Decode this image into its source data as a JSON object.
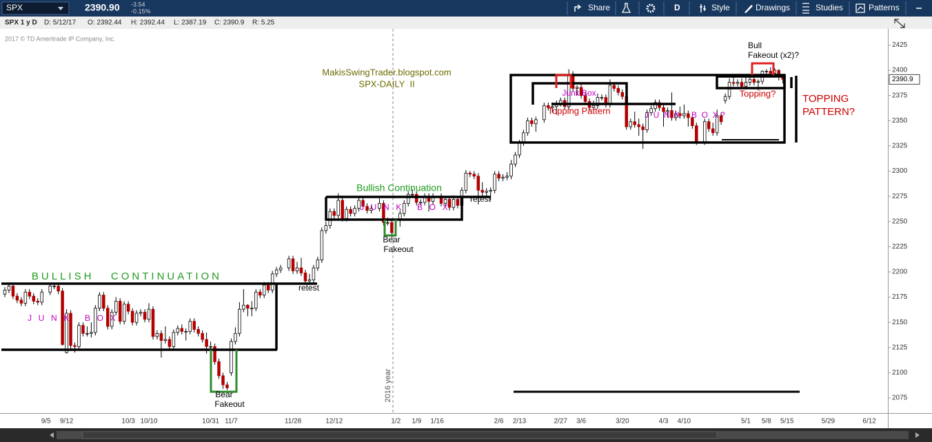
{
  "toolbar": {
    "symbol": "SPX",
    "last": "2390.90",
    "change": "-3.54",
    "change_pct": "-0.15%",
    "buttons": [
      "Share",
      "D",
      "Style",
      "Drawings",
      "Studies",
      "Patterns"
    ]
  },
  "info_bar": {
    "title": "SPX 1 y D",
    "fields": [
      "D: 5/12/17",
      "O: 2392.44",
      "H: 2392.44",
      "L: 2387.19",
      "C: 2390.9",
      "R: 5.25"
    ]
  },
  "copyright": "2017 © TD Ameritrade IP Company, Inc.",
  "chart_data": {
    "type": "candlestick",
    "categories": [
      null,
      null,
      null,
      null,
      null,
      null,
      null,
      null,
      null,
      null,
      "9/5",
      null,
      null,
      null,
      null,
      "9/12",
      null,
      null,
      null,
      null,
      null,
      null,
      null,
      null,
      null,
      null,
      null,
      null,
      null,
      null,
      "10/3",
      null,
      null,
      null,
      null,
      "10/10",
      null,
      null,
      null,
      null,
      null,
      null,
      null,
      null,
      null,
      null,
      null,
      null,
      null,
      null,
      "10/31",
      null,
      null,
      null,
      null,
      "11/7",
      null,
      null,
      null,
      null,
      null,
      null,
      null,
      null,
      null,
      null,
      null,
      null,
      null,
      null,
      "11/28",
      null,
      null,
      null,
      null,
      null,
      null,
      null,
      null,
      null,
      "12/12",
      null,
      null,
      null,
      null,
      null,
      null,
      null,
      null,
      null,
      null,
      null,
      null,
      null,
      null,
      "1/2",
      null,
      null,
      null,
      null,
      "1/9",
      null,
      null,
      null,
      null,
      "1/16",
      null,
      null,
      null,
      null,
      null,
      null,
      null,
      null,
      null,
      null,
      null,
      null,
      null,
      null,
      "2/6",
      null,
      null,
      null,
      null,
      "2/13",
      null,
      null,
      null,
      null,
      null,
      null,
      null,
      null,
      null,
      "2/27",
      null,
      null,
      null,
      null,
      "3/6",
      null,
      null,
      null,
      null,
      null,
      null,
      null,
      null,
      null,
      "3/20",
      null,
      null,
      null,
      null,
      null,
      null,
      null,
      null,
      null,
      "4/3",
      null,
      null,
      null,
      null,
      "4/10",
      null,
      null,
      null,
      null,
      null,
      null,
      null,
      null,
      null,
      null,
      null,
      null,
      null,
      null,
      "5/1",
      null,
      null,
      null,
      null,
      "5/8",
      null,
      null,
      null,
      null,
      "5/15",
      null,
      null,
      null,
      null,
      null,
      null,
      null,
      null,
      null,
      "5/29",
      null,
      null,
      null,
      null,
      null,
      null,
      null,
      null,
      null,
      "6/12",
      null,
      null,
      null,
      null
    ],
    "open": [
      2178,
      2182,
      2186,
      2176,
      2172,
      2169,
      2180,
      2176,
      2171,
      2170,
      null,
      2180,
      2186,
      2186,
      2181,
      2120,
      2159,
      2127,
      2126,
      2147,
      2139,
      2139,
      2140,
      2164,
      2177,
      2164,
      2146,
      2160,
      2171,
      2151,
      2168,
      2161,
      2150,
      2159,
      2160,
      2153,
      2163,
      2136,
      2139,
      2132,
      2133,
      2126,
      2140,
      2144,
      2141,
      2141,
      2151,
      2143,
      2139,
      2133,
      2126,
      2126,
      2111,
      2097,
      2088,
      2100,
      2131,
      2139,
      2163,
      2167,
      2164,
      2164,
      2180,
      2177,
      2187,
      2182,
      2198,
      2202,
      null,
      2204,
      2213,
      2201,
      2204,
      2199,
      2191,
      2192,
      2204,
      2212,
      2241,
      2246,
      2260,
      2256,
      2271,
      2253,
      2262,
      2258,
      2263,
      2271,
      2265,
      2261,
      null,
      2263,
      2268,
      2249,
      2249,
      null,
      2252,
      2258,
      2268,
      2277,
      2277,
      2269,
      2269,
      2275,
      2270,
      null,
      2275,
      2268,
      2272,
      2264,
      2272,
      2266,
      2281,
      2298,
      2297,
      2295,
      2281,
      2279,
      2280,
      2281,
      2297,
      2293,
      2294,
      2295,
      2307,
      2316,
      2328,
      2338,
      2350,
      2347,
      null,
      2351,
      2365,
      2363,
      2364,
      2367,
      2370,
      2364,
      2396,
      2382,
      2383,
      2375,
      2369,
      2363,
      2365,
      2373,
      2373,
      2366,
      2385,
      2382,
      2378,
      2374,
      2344,
      2349,
      2346,
      2344,
      2341,
      2358,
      2362,
      2368,
      2363,
      2359,
      2360,
      2353,
      2357,
      2355,
      2357,
      2353,
      2345,
      null,
      2329,
      2349,
      2342,
      2338,
      2355,
      2370,
      2374,
      2388,
      2387,
      2388,
      2384,
      2388,
      2391,
      2388,
      2389,
      2399,
      2399,
      2397,
      2400,
      2394,
      null,
      null,
      null,
      null,
      null,
      null,
      null,
      null,
      null,
      null,
      null,
      null,
      null,
      null,
      null,
      null,
      null,
      null,
      null,
      null,
      null,
      null,
      null,
      null,
      null
    ],
    "high": [
      2185,
      2189,
      2189,
      2179,
      2175,
      2183,
      2183,
      2179,
      2174,
      2183,
      null,
      2189,
      2189,
      2189,
      2184,
      2163,
      2162,
      2130,
      2150,
      2150,
      2146,
      2150,
      2167,
      2180,
      2180,
      2167,
      2163,
      2175,
      2174,
      2171,
      2171,
      2164,
      2162,
      2163,
      2163,
      2169,
      2166,
      2142,
      2142,
      2146,
      2136,
      2143,
      2147,
      2148,
      2144,
      2154,
      2154,
      2146,
      2142,
      2140,
      2131,
      2129,
      2114,
      2100,
      2091,
      2134,
      2145,
      2170,
      2183,
      2168,
      2171,
      2183,
      2183,
      2190,
      2190,
      2201,
      2205,
      2207,
      null,
      2216,
      2216,
      2210,
      2214,
      2202,
      2198,
      2207,
      2215,
      2244,
      2250,
      2263,
      2263,
      2278,
      2274,
      2265,
      2265,
      2266,
      2274,
      2274,
      2268,
      2266,
      null,
      2273,
      2271,
      2254,
      2252,
      null,
      2261,
      2271,
      2280,
      2282,
      2280,
      2272,
      2278,
      2278,
      2278,
      null,
      2278,
      2275,
      2275,
      2276,
      2275,
      2284,
      2301,
      2300,
      2300,
      2298,
      2289,
      2283,
      2284,
      2300,
      2300,
      2297,
      2299,
      2311,
      2319,
      2331,
      2341,
      2353,
      2353,
      2354,
      null,
      2368,
      2368,
      2368,
      2370,
      2373,
      2373,
      2401,
      2399,
      2385,
      2386,
      2378,
      2372,
      2370,
      2377,
      2376,
      2376,
      2391,
      2388,
      2385,
      2381,
      2377,
      2352,
      2359,
      2352,
      2347,
      2361,
      2365,
      2371,
      2371,
      2366,
      2363,
      2378,
      2360,
      2364,
      2366,
      2360,
      2356,
      2348,
      null,
      2352,
      2352,
      2348,
      2361,
      2358,
      2377,
      2392,
      2394,
      2391,
      2392,
      2394,
      2393,
      2394,
      2391,
      2400,
      2401,
      2403,
      2402,
      2401,
      2395,
      null,
      null,
      null,
      null,
      null,
      null,
      null,
      null,
      null,
      null,
      null,
      null,
      null,
      null,
      null,
      null,
      null,
      null,
      null,
      null,
      null,
      null,
      null,
      null,
      null
    ],
    "low": [
      2175,
      2179,
      2173,
      2169,
      2166,
      2166,
      2173,
      2168,
      2167,
      2167,
      null,
      2177,
      2183,
      2178,
      2127,
      2119,
      2124,
      2120,
      2123,
      2136,
      2136,
      2135,
      2137,
      2161,
      2161,
      2143,
      2143,
      2157,
      2148,
      2148,
      2158,
      2147,
      2147,
      2156,
      2150,
      2150,
      2133,
      2133,
      2115,
      2129,
      2123,
      2123,
      2137,
      2138,
      2132,
      2138,
      2140,
      2136,
      2130,
      2119,
      2123,
      2108,
      2094,
      2084,
      2083,
      2097,
      2128,
      2136,
      2160,
      2156,
      2156,
      2161,
      2174,
      2174,
      2179,
      2179,
      2195,
      2199,
      null,
      2201,
      2198,
      2198,
      2196,
      2188,
      2187,
      2189,
      2201,
      2209,
      2238,
      2243,
      2253,
      2253,
      2250,
      2250,
      2255,
      2255,
      2260,
      2262,
      2258,
      2258,
      null,
      2260,
      2246,
      2246,
      2234,
      null,
      2245,
      2255,
      2265,
      2274,
      2266,
      2266,
      2266,
      2260,
      2267,
      null,
      2265,
      2265,
      2261,
      2261,
      2263,
      2263,
      2278,
      2294,
      2292,
      2267,
      2275,
      2274,
      2271,
      2278,
      2290,
      2290,
      2291,
      2292,
      2304,
      2313,
      2325,
      2335,
      2344,
      2339,
      null,
      2348,
      2360,
      2358,
      2356,
      2364,
      2361,
      2361,
      2379,
      2375,
      2372,
      2366,
      2360,
      2360,
      2362,
      2370,
      2363,
      2363,
      2379,
      2375,
      2371,
      2341,
      2341,
      2343,
      2335,
      2322,
      2338,
      2355,
      2359,
      2360,
      2344,
      2353,
      2350,
      2350,
      2352,
      2352,
      2344,
      2342,
      2326,
      null,
      2326,
      2339,
      2335,
      2335,
      2346,
      2367,
      2371,
      2384,
      2384,
      2382,
      2381,
      2385,
      2385,
      2380,
      2386,
      2394,
      2394,
      2395,
      2390,
      2387,
      null,
      null,
      null,
      null,
      null,
      null,
      null,
      null,
      null,
      null,
      null,
      null,
      null,
      null,
      null,
      null,
      null,
      null,
      null,
      null,
      null,
      null,
      null,
      null,
      null
    ],
    "close": [
      2182,
      2186,
      2176,
      2172,
      2169,
      2180,
      2176,
      2171,
      2170,
      2180,
      null,
      2186,
      2186,
      2181,
      2128,
      2159,
      2127,
      2126,
      2147,
      2139,
      2139,
      2140,
      2164,
      2177,
      2164,
      2146,
      2160,
      2171,
      2151,
      2168,
      2161,
      2150,
      2159,
      2160,
      2153,
      2163,
      2136,
      2139,
      2132,
      2133,
      2126,
      2140,
      2144,
      2141,
      2141,
      2151,
      2143,
      2139,
      2133,
      2126,
      2126,
      2111,
      2097,
      2088,
      2085,
      2131,
      2139,
      2163,
      2167,
      2164,
      2164,
      2180,
      2177,
      2187,
      2182,
      2198,
      2202,
      2204,
      null,
      2213,
      2201,
      2204,
      2199,
      2191,
      2192,
      2204,
      2212,
      2241,
      2246,
      2260,
      2256,
      2271,
      2253,
      2262,
      2258,
      2263,
      2271,
      2265,
      2261,
      2263,
      null,
      2268,
      2249,
      2249,
      2239,
      null,
      2258,
      2268,
      2277,
      2277,
      2269,
      2269,
      2275,
      2270,
      2275,
      null,
      2268,
      2272,
      2264,
      2272,
      2266,
      2281,
      2298,
      2297,
      2295,
      2281,
      2279,
      2280,
      2281,
      2297,
      2293,
      2294,
      2295,
      2307,
      2316,
      2328,
      2338,
      2350,
      2347,
      2351,
      null,
      2365,
      2363,
      2364,
      2367,
      2370,
      2364,
      2396,
      2382,
      2383,
      2375,
      2369,
      2363,
      2365,
      2373,
      2373,
      2366,
      2385,
      2382,
      2378,
      2374,
      2344,
      2349,
      2346,
      2344,
      2341,
      2358,
      2362,
      2368,
      2363,
      2359,
      2360,
      2353,
      2357,
      2355,
      2357,
      2353,
      2345,
      2329,
      null,
      2349,
      2342,
      2338,
      2355,
      2349,
      2374,
      2388,
      2387,
      2388,
      2384,
      2388,
      2391,
      2388,
      2389,
      2399,
      2399,
      2397,
      2400,
      2394,
      2391,
      null,
      null,
      null,
      null,
      null,
      null,
      null,
      null,
      null,
      null,
      null,
      null,
      null,
      null,
      null,
      null,
      null,
      null,
      null,
      null,
      null,
      null,
      null,
      null,
      null
    ],
    "up_color": "#ffffff",
    "down_color": "#b30000",
    "ylim": [
      2060,
      2441
    ],
    "yticks": [
      2075,
      2100,
      2125,
      2150,
      2175,
      2200,
      2225,
      2250,
      2275,
      2300,
      2325,
      2350,
      2375,
      2400,
      2425
    ],
    "last_price": 2390.9,
    "annotations": [
      "MakisSwingTrader.blogspot.com",
      "SPX-DAILY  II",
      "BULLISH   CONTINUATION",
      "J  U  N  K     B  O  X",
      "retest",
      "Bear",
      "Fakeout",
      "Bullish Continuation",
      "J  U  N  K     B  O  X",
      "retest",
      "Bear",
      "Fakeout",
      "Junk Box",
      "Topping Pattern",
      "J  U  N  K     B  O  X ?",
      "Bull",
      "Fakeout (x2)?",
      "Topping?",
      "TOPPING",
      "PATTERN?",
      "2016 year"
    ]
  }
}
